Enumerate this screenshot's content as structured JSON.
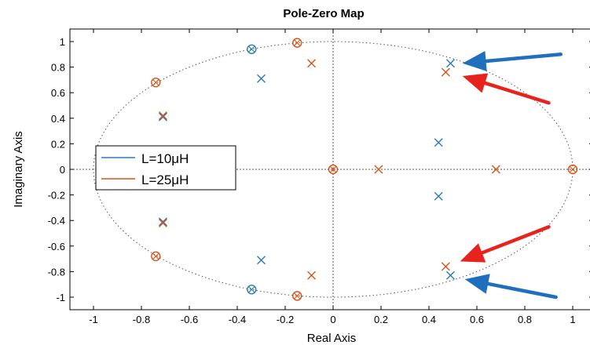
{
  "chart_data": {
    "type": "scatter",
    "title": "Pole-Zero Map",
    "xlabel": "Real Axis",
    "ylabel": "Imaginary Axis",
    "xlim": [
      -1.1,
      1.1
    ],
    "ylim": [
      -1.1,
      1.1
    ],
    "xticks": [
      -1,
      -0.8,
      -0.6,
      -0.4,
      -0.2,
      0,
      0.2,
      0.4,
      0.6,
      0.8,
      1
    ],
    "yticks": [
      -1,
      -0.8,
      -0.6,
      -0.4,
      -0.2,
      0,
      0.2,
      0.4,
      0.6,
      0.8,
      1
    ],
    "unit_circle": true,
    "grid": false,
    "legend_position": "center-left",
    "series": [
      {
        "name": "L=10μH",
        "color": "#2b7bba",
        "poles": [
          [
            0.49,
            0.83
          ],
          [
            -0.3,
            0.71
          ],
          [
            -0.71,
            0.41
          ],
          [
            0.44,
            0.21
          ],
          [
            0.44,
            -0.21
          ],
          [
            -0.71,
            -0.41
          ],
          [
            -0.3,
            -0.71
          ],
          [
            0.49,
            -0.83
          ]
        ],
        "zeros": [
          [
            -0.34,
            0.94
          ],
          [
            -0.34,
            -0.94
          ]
        ]
      },
      {
        "name": "L=25μH",
        "color": "#d95319",
        "poles": [
          [
            -0.09,
            0.83
          ],
          [
            0.47,
            0.76
          ],
          [
            -0.71,
            0.42
          ],
          [
            0.19,
            0.0
          ],
          [
            0.68,
            0.0
          ],
          [
            -0.71,
            -0.42
          ],
          [
            0.47,
            -0.76
          ],
          [
            -0.09,
            -0.83
          ]
        ],
        "zeros": [
          [
            -0.15,
            0.99
          ],
          [
            -0.74,
            0.68
          ],
          [
            0.0,
            0.0
          ],
          [
            1.0,
            0.0
          ],
          [
            -0.74,
            -0.68
          ],
          [
            -0.15,
            -0.99
          ]
        ]
      }
    ],
    "annotations": [
      {
        "type": "arrow",
        "color": "#1f6fbf",
        "from": [
          0.95,
          0.9
        ],
        "to": [
          0.54,
          0.83
        ]
      },
      {
        "type": "arrow",
        "color": "#e8231e",
        "from": [
          0.9,
          0.52
        ],
        "to": [
          0.54,
          0.73
        ]
      },
      {
        "type": "arrow",
        "color": "#e8231e",
        "from": [
          0.9,
          -0.45
        ],
        "to": [
          0.53,
          -0.72
        ]
      },
      {
        "type": "arrow",
        "color": "#1f6fbf",
        "from": [
          0.93,
          -1.0
        ],
        "to": [
          0.55,
          -0.86
        ]
      }
    ]
  }
}
